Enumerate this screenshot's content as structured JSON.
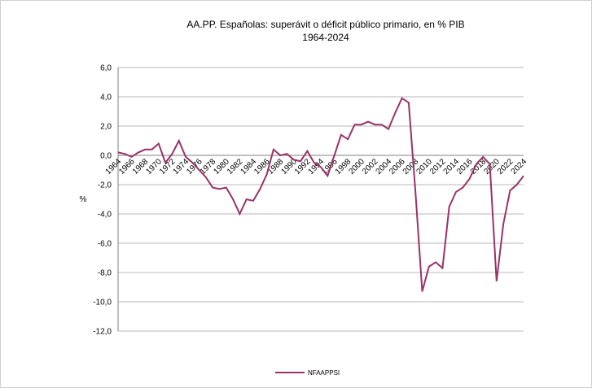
{
  "chart_data": {
    "type": "line",
    "title": "AA.PP. Españolas:  superávit o déficit público primario, en % PIB",
    "subtitle": "1964-2024",
    "y_label": "%",
    "categories": [
      "1964",
      null,
      "1966",
      null,
      "1968",
      null,
      "1970",
      null,
      "1972",
      null,
      "1974",
      null,
      "1976",
      null,
      "1978",
      null,
      "1980",
      null,
      "1982",
      null,
      "1984",
      null,
      "1986",
      null,
      "1988",
      null,
      "1990",
      null,
      "1992",
      null,
      "1994",
      null,
      "1996",
      null,
      "1998",
      null,
      "2000",
      null,
      "2002",
      null,
      "2004",
      null,
      "2006",
      null,
      "2008",
      null,
      "2010",
      null,
      "2012",
      null,
      "2014",
      null,
      "2016",
      null,
      "2018",
      null,
      "2020",
      null,
      "2022",
      null,
      "2024"
    ],
    "series": [
      {
        "name": "NFAAPPSI",
        "color": "#993366",
        "values": [
          0.2,
          0.1,
          -0.1,
          0.2,
          0.4,
          0.4,
          0.8,
          -0.5,
          0.1,
          1.0,
          -0.1,
          -0.5,
          -1.0,
          -1.5,
          -2.2,
          -2.3,
          -2.2,
          -3.0,
          -4.0,
          -3.0,
          -3.1,
          -2.3,
          -1.3,
          0.4,
          0.0,
          0.1,
          -0.3,
          -0.4,
          0.3,
          -0.5,
          -0.8,
          -1.4,
          0.0,
          1.4,
          1.1,
          2.1,
          2.1,
          2.3,
          2.1,
          2.1,
          1.8,
          2.9,
          3.9,
          3.6,
          -2.5,
          -9.3,
          -7.6,
          -7.3,
          -7.7,
          -3.5,
          -2.5,
          -2.2,
          -1.6,
          -0.6,
          -0.1,
          -0.6,
          -8.6,
          -4.7,
          -2.4,
          -2.0,
          -1.4
        ]
      }
    ],
    "ylim": [
      -12,
      6
    ],
    "yticks": [
      {
        "value": -12,
        "label": "-12,0"
      },
      {
        "value": -10,
        "label": "-10,0"
      },
      {
        "value": -8,
        "label": "-8,0"
      },
      {
        "value": -6,
        "label": "-6,0"
      },
      {
        "value": -4,
        "label": "-4,0"
      },
      {
        "value": -2,
        "label": "-2,0"
      },
      {
        "value": 0,
        "label": "0,0"
      },
      {
        "value": 2,
        "label": "2,0"
      },
      {
        "value": 4,
        "label": "4,0"
      },
      {
        "value": 6,
        "label": "6,0"
      }
    ],
    "grid": true,
    "legend": "bottom"
  }
}
